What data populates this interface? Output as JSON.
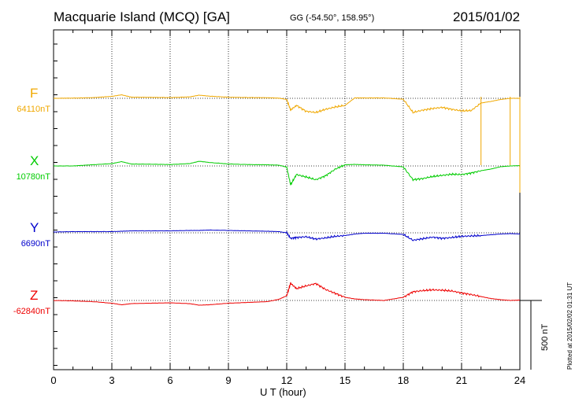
{
  "header": {
    "title": "Macquarie Island (MCQ)  [GA]",
    "coords": "GG (-54.50°, 158.95°)",
    "date": "2015/01/02"
  },
  "credit": "Plotted at 2015/02/02 01:31  UT",
  "chart_data": {
    "type": "line",
    "xlabel": "U T (hour)",
    "xlim": [
      0,
      24
    ],
    "xticks": [
      0,
      3,
      6,
      9,
      12,
      15,
      18,
      21,
      24
    ],
    "scale_bar": "500 nT",
    "series": [
      {
        "name": "F",
        "baseline": "64110nT",
        "color": "#f0a800",
        "x": [
          0,
          1,
          2,
          3,
          3.5,
          4,
          5,
          6,
          7,
          7.5,
          8,
          9,
          10,
          11,
          11.6,
          12,
          12.2,
          12.5,
          13,
          13.5,
          14,
          14.5,
          15,
          15.5,
          16,
          17,
          18,
          18.5,
          19,
          19.5,
          20,
          20.5,
          21,
          21.5,
          22,
          22.5,
          23,
          23.5,
          24
        ],
        "y": [
          0,
          3,
          8,
          25,
          45,
          15,
          12,
          10,
          18,
          40,
          28,
          14,
          10,
          8,
          2,
          -15,
          -150,
          -90,
          -165,
          -180,
          -140,
          -110,
          -90,
          5,
          5,
          5,
          -12,
          -180,
          -150,
          -130,
          -115,
          -140,
          -160,
          -155,
          -60,
          -40,
          -15,
          0,
          0
        ]
      },
      {
        "name": "X",
        "baseline": "10780nT",
        "color": "#00cc00",
        "x": [
          0,
          1,
          2,
          3,
          3.5,
          4,
          5,
          6,
          7,
          7.5,
          8,
          9,
          10,
          11,
          11.6,
          12,
          12.2,
          12.5,
          13,
          13.5,
          14,
          14.5,
          15,
          15.5,
          16,
          17,
          18,
          18.5,
          19,
          19.5,
          20,
          20.5,
          21,
          21.5,
          22,
          22.5,
          23,
          23.5,
          24
        ],
        "y": [
          0,
          0,
          15,
          30,
          55,
          25,
          22,
          18,
          30,
          60,
          45,
          25,
          18,
          15,
          10,
          -15,
          -240,
          -110,
          -140,
          -175,
          -125,
          -40,
          15,
          20,
          15,
          10,
          -12,
          -175,
          -160,
          -135,
          -120,
          -105,
          -110,
          -90,
          -60,
          -40,
          -10,
          0,
          5
        ]
      },
      {
        "name": "Y",
        "baseline": "6690nT",
        "color": "#0000cc",
        "x": [
          0,
          1,
          2,
          3,
          3.5,
          4,
          5,
          6,
          7,
          7.5,
          8,
          9,
          10,
          11,
          11.6,
          12,
          12.2,
          12.5,
          13,
          13.5,
          14,
          14.5,
          15,
          15.5,
          16,
          17,
          18,
          18.5,
          19,
          19.5,
          20,
          20.5,
          21,
          21.5,
          22,
          22.5,
          23,
          23.5,
          24
        ],
        "y": [
          10,
          15,
          15,
          15,
          20,
          25,
          25,
          25,
          30,
          30,
          35,
          30,
          25,
          20,
          15,
          0,
          -70,
          -60,
          -50,
          -80,
          -65,
          -45,
          -35,
          -15,
          -5,
          -5,
          -20,
          -95,
          -75,
          -55,
          -70,
          -60,
          -45,
          -40,
          -35,
          -25,
          -15,
          -10,
          -15
        ]
      },
      {
        "name": "Z",
        "baseline": "-62840nT",
        "color": "#ee0000",
        "x": [
          0,
          1,
          2,
          3,
          3.5,
          4,
          5,
          6,
          7,
          7.5,
          8,
          9,
          10,
          11,
          11.6,
          12,
          12.2,
          12.5,
          13,
          13.5,
          14,
          14.5,
          15,
          15.5,
          16,
          17,
          18,
          18.5,
          19,
          19.5,
          20,
          20.5,
          21,
          21.5,
          22,
          22.5,
          23,
          23.5,
          24
        ],
        "y": [
          0,
          -5,
          -15,
          -35,
          -55,
          -40,
          -35,
          -30,
          -40,
          -60,
          -55,
          -35,
          -25,
          -15,
          15,
          60,
          220,
          150,
          185,
          215,
          140,
          90,
          40,
          20,
          10,
          0,
          40,
          110,
          125,
          135,
          130,
          120,
          95,
          75,
          50,
          25,
          10,
          0,
          5
        ]
      }
    ]
  }
}
